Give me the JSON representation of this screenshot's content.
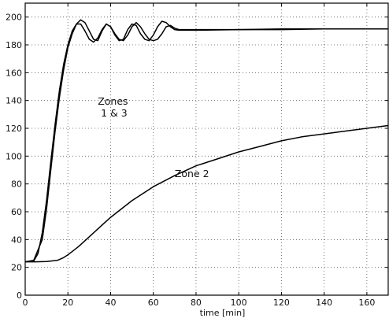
{
  "chart_data": {
    "type": "line",
    "title": "",
    "xlabel": "time [min]",
    "ylabel": "",
    "xlim": [
      0,
      170
    ],
    "ylim": [
      0,
      210
    ],
    "xticks": [
      0,
      20,
      40,
      60,
      80,
      100,
      120,
      140,
      160
    ],
    "yticks": [
      0,
      20,
      40,
      60,
      80,
      100,
      120,
      140,
      160,
      180,
      200
    ],
    "grid": true,
    "annotations": [
      {
        "text": [
          "Zones",
          "1 & 3"
        ],
        "x": 34,
        "y": 137
      },
      {
        "text": [
          "Zone 2"
        ],
        "x": 70,
        "y": 85
      }
    ],
    "series": [
      {
        "x": [
          0,
          4,
          8,
          10,
          12,
          14,
          16,
          18,
          20,
          22,
          24,
          26,
          28,
          30,
          32,
          34,
          36,
          38,
          40,
          42,
          44,
          46,
          48,
          50,
          52,
          54,
          56,
          58,
          60,
          62,
          64,
          66,
          68,
          70,
          72,
          80,
          100,
          120,
          140,
          160,
          170
        ],
        "y": [
          24,
          25,
          40,
          62,
          90,
          118,
          142,
          162,
          178,
          188,
          195,
          198,
          196,
          190,
          184,
          183,
          190,
          195,
          193,
          187,
          183,
          184,
          191,
          195,
          194,
          188,
          184,
          183,
          187,
          193,
          197,
          196,
          193,
          191,
          190.5,
          190.5,
          191,
          191,
          191.5,
          191.5,
          191.5
        ]
      },
      {
        "x": [
          0,
          4,
          6,
          8,
          10,
          12,
          14,
          16,
          18,
          20,
          22,
          24,
          26,
          28,
          30,
          32,
          34,
          36,
          38,
          40,
          42,
          44,
          46,
          48,
          50,
          52,
          54,
          56,
          58,
          60,
          62,
          64,
          66,
          68,
          70,
          72,
          80,
          100,
          120,
          140,
          160,
          170
        ],
        "y": [
          24,
          24.5,
          30,
          45,
          68,
          96,
          123,
          147,
          166,
          180,
          190,
          195,
          195,
          190,
          184,
          182,
          185,
          191,
          195,
          193,
          188,
          184,
          183,
          187,
          193,
          196,
          193,
          188,
          184,
          183,
          184,
          188,
          193,
          194,
          192,
          191,
          191,
          191,
          191.5,
          191.5,
          191.5,
          191.5
        ]
      },
      {
        "x": [
          0,
          5,
          10,
          15,
          18,
          20,
          25,
          30,
          35,
          40,
          50,
          60,
          70,
          80,
          90,
          100,
          110,
          120,
          130,
          140,
          150,
          160,
          170
        ],
        "y": [
          24,
          24,
          24.2,
          25,
          27,
          29,
          35,
          42,
          49,
          56,
          68,
          78,
          86,
          93,
          98,
          103,
          107,
          111,
          114,
          116,
          118,
          120,
          122
        ]
      }
    ]
  }
}
